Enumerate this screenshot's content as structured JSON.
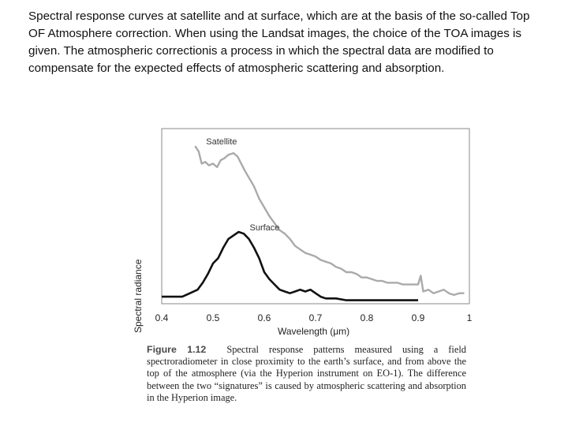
{
  "intro_text": "Spectral response curves at satellite and at surface, which are at the basis of the so-called Top OF Atmosphere correction. When using the Landsat images, the choice of the TOA images is given. The atmospheric correctionis a process in which the spectral data are modified to compensate for the expected effects of atmospheric scattering and absorption.",
  "caption": {
    "label": "Figure 1.12",
    "text": "Spectral response patterns measured using a field spectroradiometer in close proximity to the earth’s surface, and from above the top of the atmosphere (via the Hyperion instrument on EO-1). The difference between the two “signatures” is caused by atmospheric scattering and absorption in the Hyperion image."
  },
  "chart_data": {
    "type": "line",
    "xlabel": "Wavelength (μm)",
    "ylabel": "Spectral radiance",
    "xlim": [
      0.4,
      1.0
    ],
    "ylim": [
      0,
      100
    ],
    "xticks": [
      "0.4",
      "0.5",
      "0.6",
      "0.7",
      "0.8",
      "0.9",
      "1"
    ],
    "colors": {
      "satellite": "#aaaaaa",
      "surface": "#111111"
    },
    "series": [
      {
        "name": "Satellite",
        "x": [
          0.465,
          0.472,
          0.478,
          0.485,
          0.492,
          0.5,
          0.508,
          0.515,
          0.522,
          0.53,
          0.54,
          0.548,
          0.555,
          0.562,
          0.57,
          0.58,
          0.59,
          0.6,
          0.61,
          0.62,
          0.63,
          0.64,
          0.65,
          0.66,
          0.67,
          0.68,
          0.69,
          0.7,
          0.71,
          0.72,
          0.73,
          0.74,
          0.75,
          0.76,
          0.77,
          0.78,
          0.79,
          0.8,
          0.81,
          0.82,
          0.83,
          0.84,
          0.85,
          0.86,
          0.87,
          0.88,
          0.89,
          0.9,
          0.905,
          0.91,
          0.92,
          0.93,
          0.94,
          0.95,
          0.96,
          0.97,
          0.98,
          0.99
        ],
        "y": [
          90,
          87,
          80,
          81,
          79,
          80,
          78,
          82,
          83,
          85,
          86,
          84,
          80,
          76,
          72,
          67,
          60,
          55,
          50,
          46,
          42,
          40,
          37,
          33,
          31,
          29,
          28,
          27,
          25,
          24,
          23,
          21,
          20,
          18,
          18,
          17,
          15,
          15,
          14,
          13,
          13,
          12,
          12,
          12,
          11,
          11,
          11,
          11,
          16,
          7,
          8,
          6,
          7,
          8,
          6,
          5,
          6,
          6
        ]
      },
      {
        "name": "Surface",
        "x": [
          0.4,
          0.42,
          0.44,
          0.455,
          0.47,
          0.48,
          0.49,
          0.5,
          0.51,
          0.52,
          0.53,
          0.54,
          0.55,
          0.56,
          0.57,
          0.58,
          0.59,
          0.6,
          0.61,
          0.62,
          0.63,
          0.64,
          0.65,
          0.66,
          0.67,
          0.68,
          0.69,
          0.7,
          0.71,
          0.72,
          0.73,
          0.74,
          0.76,
          0.78,
          0.8,
          0.85,
          0.9
        ],
        "y": [
          4,
          4,
          4,
          6,
          8,
          12,
          17,
          23,
          26,
          32,
          37,
          39,
          41,
          40,
          37,
          32,
          26,
          18,
          14,
          11,
          8,
          7,
          6,
          7,
          8,
          7,
          8,
          6,
          4,
          3,
          3,
          3,
          2,
          2,
          2,
          2,
          2
        ]
      }
    ],
    "annotations": [
      {
        "text": "Satellite",
        "series": "Satellite"
      },
      {
        "text": "Surface",
        "series": "Surface"
      }
    ]
  }
}
